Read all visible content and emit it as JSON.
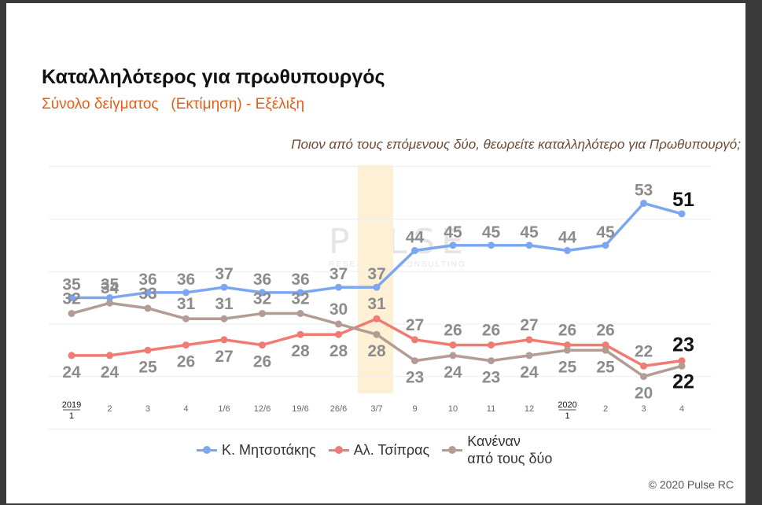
{
  "title": "Καταλληλότερος για πρωθυπουργός",
  "subtitle": "Σύνολο δείγματος   (Εκτίμηση) - Εξέλιξη",
  "question": "Ποιον από τους επόμενους δύο, θεωρείτε καταλληλότερο για Πρωθυπουργό;",
  "watermark": {
    "brand": "PULSE",
    "tagline": "RESEARCH & CONSULTING"
  },
  "copyright": "© 2020 Pulse RC",
  "chart_data": {
    "type": "line",
    "categories": [
      "1",
      "2",
      "3",
      "4",
      "1/6",
      "12/6",
      "19/6",
      "26/6",
      "3/7",
      "9",
      "10",
      "11",
      "12",
      "1",
      "2",
      "3",
      "4"
    ],
    "year_markers": [
      {
        "index": 0,
        "label": "2019"
      },
      {
        "index": 13,
        "label": "2020"
      }
    ],
    "highlight_category": "3/7",
    "ylim": [
      0,
      70
    ],
    "grid": true,
    "legend_position": "bottom",
    "series": [
      {
        "name": "Κ. Μητσοτάκης",
        "color": "#7ba7f0",
        "values": [
          35,
          35,
          36,
          36,
          37,
          36,
          36,
          37,
          37,
          44,
          45,
          45,
          45,
          44,
          45,
          53,
          51
        ]
      },
      {
        "name": "Αλ. Τσίπρας",
        "color": "#f07b72",
        "values": [
          24,
          24,
          25,
          26,
          27,
          26,
          28,
          28,
          31,
          27,
          26,
          26,
          27,
          26,
          26,
          22,
          23
        ]
      },
      {
        "name": "Κανέναν από τους δύο",
        "name_lines": [
          "Κανέναν",
          "από τους δύο"
        ],
        "color": "#b39c94",
        "values": [
          32,
          34,
          33,
          31,
          31,
          32,
          32,
          30,
          28,
          23,
          24,
          23,
          24,
          25,
          25,
          20,
          22
        ]
      }
    ]
  }
}
